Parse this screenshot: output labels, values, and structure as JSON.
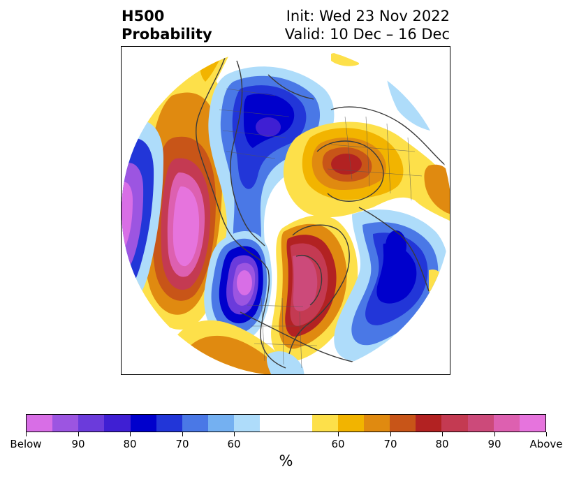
{
  "header": {
    "title_line1": "H500",
    "title_line2": "Probability",
    "init_label": "Init: Wed 23 Nov 2022",
    "valid_label": "Valid: 10 Dec – 16 Dec"
  },
  "colorbar": {
    "below_colors": [
      "#d86ee6",
      "#9c55e1",
      "#6b3bdb",
      "#3f1fd3",
      "#0000cc",
      "#2236d8",
      "#4a78e6",
      "#74b0f1",
      "#aedcfa"
    ],
    "neutral_color": "#ffffff",
    "above_colors": [
      "#fde04a",
      "#f2b400",
      "#e08a10",
      "#c85518",
      "#b22222",
      "#c43a52",
      "#cc4a7a",
      "#dd60b0",
      "#e674dd"
    ],
    "tick_labels": [
      "Below",
      "90",
      "80",
      "70",
      "60",
      "60",
      "70",
      "80",
      "90",
      "Above"
    ],
    "units_label": "%"
  },
  "map": {
    "projection": "north-polar-stereographic",
    "ocean_color": "#ffffff",
    "coastline_color": "#3a3a3a"
  }
}
